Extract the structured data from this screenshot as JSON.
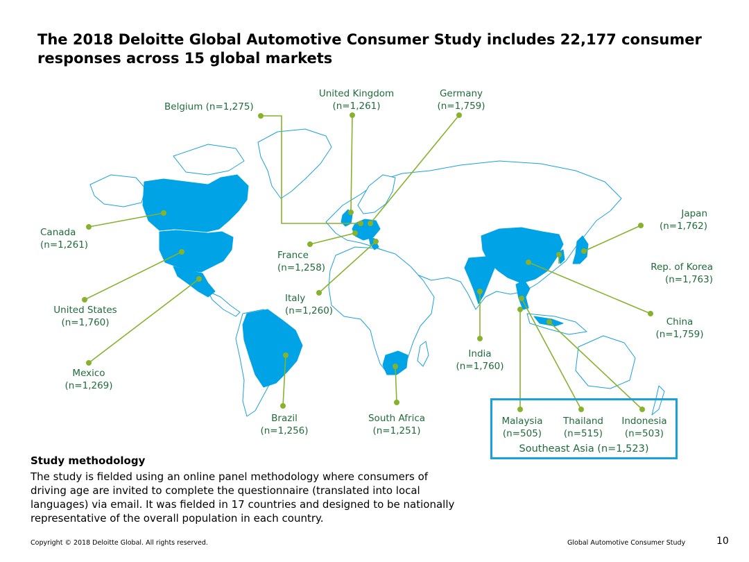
{
  "title": "The 2018 Deloitte Global Automotive Consumer Study includes 22,177 consumer responses across 15 global markets",
  "markets": [
    {
      "id": "canada",
      "name": "Canada",
      "n": "(n=1,261)"
    },
    {
      "id": "united-states",
      "name": "United States",
      "n": "(n=1,760)"
    },
    {
      "id": "mexico",
      "name": "Mexico",
      "n": "(n=1,269)"
    },
    {
      "id": "brazil",
      "name": "Brazil",
      "n": "(n=1,256)"
    },
    {
      "id": "belgium",
      "label": "Belgium (n=1,275)"
    },
    {
      "id": "united-kingdom",
      "name": "United Kingdom",
      "n": "(n=1,261)"
    },
    {
      "id": "germany",
      "name": "Germany",
      "n": "(n=1,759)"
    },
    {
      "id": "france",
      "name": "France",
      "n": "(n=1,258)"
    },
    {
      "id": "italy",
      "name": "Italy",
      "n": "(n=1,260)"
    },
    {
      "id": "south-africa",
      "name": "South Africa",
      "n": "(n=1,251)"
    },
    {
      "id": "india",
      "name": "India",
      "n": "(n=1,760)"
    },
    {
      "id": "japan",
      "name": "Japan",
      "n": "(n=1,762)"
    },
    {
      "id": "korea",
      "name": "Rep. of Korea",
      "n": "(n=1,763)"
    },
    {
      "id": "china",
      "name": "China",
      "n": "(n=1,759)"
    },
    {
      "id": "malaysia",
      "name": "Malaysia",
      "n": "(n=505)"
    },
    {
      "id": "thailand",
      "name": "Thailand",
      "n": "(n=515)"
    },
    {
      "id": "indonesia",
      "name": "Indonesia",
      "n": "(n=503)"
    }
  ],
  "southeast_asia": "Southeast Asia (n=1,523)",
  "methodology": {
    "heading": "Study methodology",
    "text": "The study is fielded using an online panel methodology where consumers of driving age are invited to complete the questionnaire (translated into local languages) via email. It was fielded in 17 countries and designed to be nationally representative of the overall population in each country."
  },
  "footer": {
    "copyright": "Copyright © 2018 Deloitte Global. All rights reserved.",
    "study": "Global Automotive Consumer Study",
    "page": "10"
  },
  "colors": {
    "highlight": "#00a3e6",
    "land_outline": "#1aa0dc",
    "leader": "#86b22e",
    "label": "#1f6b3a"
  }
}
